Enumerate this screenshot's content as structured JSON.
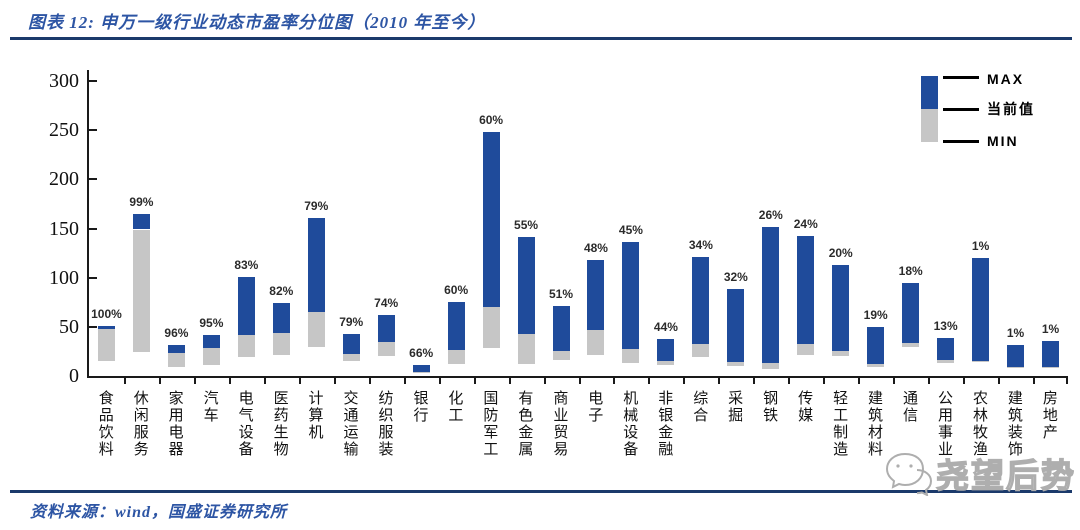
{
  "header": {
    "title": "图表 12: 申万一级行业动态市盈率分位图（2010 年至今）"
  },
  "footer": {
    "source": "资料来源：wind，国盛证券研究所"
  },
  "watermark": {
    "icon": "wechat-icon",
    "text": "尧望后势"
  },
  "legend": {
    "max_label": "MAX",
    "current_label": "当前值",
    "min_label": "MIN"
  },
  "colors": {
    "bar_blue": "#1f4b9b",
    "bar_gray": "#c6c6c6",
    "accent_blue": "#2d55a4",
    "rule_navy": "#1b3a6b",
    "axis_black": "#1a1a1a"
  },
  "chart_data": {
    "type": "bar",
    "subtype": "floating-range-bar (MIN→当前值 gray, 当前值→MAX blue, label = percentile)",
    "title": "申万一级行业动态市盈率分位图（2010 年至今）",
    "xlabel": "",
    "ylabel": "",
    "ylim": [
      0,
      300
    ],
    "yticks": [
      0,
      50,
      100,
      150,
      200,
      250,
      300
    ],
    "grid": false,
    "legend_position": "top-right",
    "legend_entries": [
      "MAX",
      "当前值",
      "MIN"
    ],
    "categories": [
      "食品饮料",
      "休闲服务",
      "家用电器",
      "汽车",
      "电气设备",
      "医药生物",
      "计算机",
      "交通运输",
      "纺织服装",
      "银行",
      "化工",
      "国防军工",
      "有色金属",
      "商业贸易",
      "电子",
      "机械设备",
      "非银金融",
      "综合",
      "采掘",
      "钢铁",
      "传媒",
      "轻工制造",
      "建筑材料",
      "通信",
      "公用事业",
      "农林牧渔",
      "建筑装饰",
      "房地产"
    ],
    "percentile_labels": [
      "100%",
      "99%",
      "96%",
      "95%",
      "83%",
      "82%",
      "79%",
      "79%",
      "74%",
      "66%",
      "60%",
      "60%",
      "55%",
      "51%",
      "48%",
      "45%",
      "44%",
      "34%",
      "32%",
      "26%",
      "24%",
      "20%",
      "19%",
      "18%",
      "13%",
      "1%",
      "1%",
      "1%"
    ],
    "series": [
      {
        "name": "MIN",
        "values": [
          15,
          24,
          9,
          11,
          19,
          21,
          29,
          15,
          20,
          4,
          12,
          28,
          12,
          16,
          21,
          13,
          11,
          19,
          10,
          7,
          21,
          20,
          9,
          30,
          13,
          14,
          9,
          9
        ]
      },
      {
        "name": "当前值",
        "values": [
          48,
          149,
          23,
          28,
          42,
          44,
          65,
          22,
          35,
          4.5,
          26,
          70,
          43,
          25,
          47,
          27,
          15,
          33,
          14,
          13,
          33,
          25,
          12,
          34,
          16,
          15,
          9.5,
          9.5
        ]
      },
      {
        "name": "MAX",
        "values": [
          51,
          165,
          32,
          42,
          101,
          74,
          161,
          43,
          62,
          11,
          75,
          248,
          141,
          71,
          118,
          136,
          38,
          121,
          88,
          152,
          142,
          113,
          50,
          95,
          39,
          120,
          32,
          36
        ]
      }
    ]
  }
}
